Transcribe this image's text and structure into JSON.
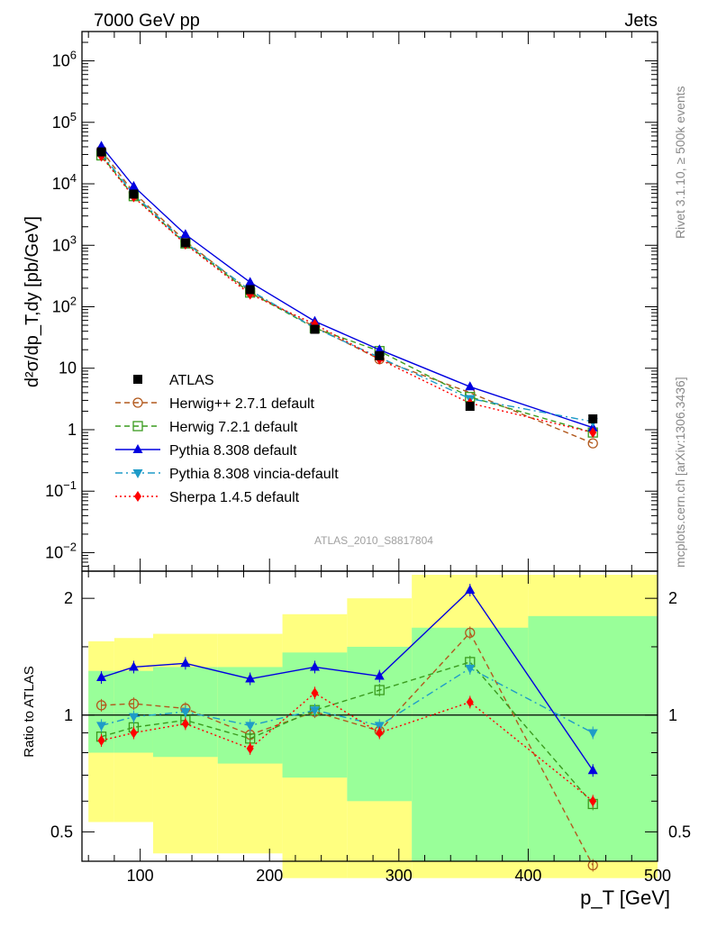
{
  "header": {
    "left": "7000 GeV pp",
    "right": "Jets",
    "side_rivet": "Rivet 3.1.10, ≥ 500k events",
    "side_mcplots": "mcplots.cern.ch [arXiv:1306.3436]",
    "analysis_id": "ATLAS_2010_S8817804"
  },
  "chart_data": [
    {
      "id": "main",
      "type": "line",
      "ylabel": "d²σ/dp_T,dy [pb/GeV]",
      "yscale": "log",
      "ylim": [
        0.005,
        3000000
      ],
      "xlim": [
        55,
        500
      ],
      "ytick_labels": [
        "10^-2",
        "10^-1",
        "1",
        "10",
        "10^2",
        "10^3",
        "10^4",
        "10^5",
        "10^6"
      ],
      "x": [
        70,
        95,
        135,
        185,
        235,
        285,
        355,
        450
      ],
      "data": {
        "name": "ATLAS",
        "values": [
          33000,
          6800,
          1100,
          190,
          43,
          16,
          2.4,
          1.5
        ]
      },
      "series": [
        {
          "name": "Herwig++ 2.7.1 default",
          "values": [
            35000,
            7200,
            1170,
            175,
            47,
            14,
            4.0,
            0.6
          ]
        },
        {
          "name": "Herwig 7.2.1 default",
          "values": [
            29000,
            6300,
            1070,
            170,
            45,
            19,
            3.4,
            0.9
          ]
        },
        {
          "name": "Pythia 8.308 default",
          "values": [
            41000,
            9100,
            1500,
            250,
            58,
            20,
            5.0,
            1.08
          ]
        },
        {
          "name": "Pythia 8.308 vincia-default",
          "values": [
            31000,
            6700,
            1110,
            185,
            45,
            15,
            3.2,
            1.35
          ]
        },
        {
          "name": "Sherpa 1.4.5 default",
          "values": [
            28000,
            6100,
            1040,
            160,
            52,
            14,
            2.7,
            0.9
          ]
        }
      ]
    },
    {
      "id": "ratio",
      "type": "line",
      "ylabel": "Ratio to ATLAS",
      "ylim": [
        0.42,
        2.35
      ],
      "xlabel": "p_T [GeV]",
      "xlim": [
        55,
        500
      ],
      "xticks": [
        100,
        200,
        300,
        400,
        500
      ],
      "yticks": [
        0.5,
        1,
        2
      ],
      "x": [
        70,
        95,
        135,
        185,
        235,
        285,
        355,
        450
      ],
      "bins": [
        [
          60,
          80
        ],
        [
          80,
          110
        ],
        [
          110,
          160
        ],
        [
          160,
          210
        ],
        [
          210,
          260
        ],
        [
          260,
          310
        ],
        [
          310,
          400
        ],
        [
          400,
          500
        ]
      ],
      "band_green": [
        [
          0.8,
          1.3
        ],
        [
          0.8,
          1.3
        ],
        [
          0.78,
          1.33
        ],
        [
          0.75,
          1.33
        ],
        [
          0.69,
          1.45
        ],
        [
          0.6,
          1.5
        ],
        [
          0.42,
          1.68
        ],
        [
          0.42,
          1.8
        ]
      ],
      "band_yellow": [
        [
          0.53,
          1.55
        ],
        [
          0.53,
          1.58
        ],
        [
          0.44,
          1.62
        ],
        [
          0.44,
          1.62
        ],
        [
          0.38,
          1.82
        ],
        [
          0.38,
          2.0
        ],
        [
          0.38,
          2.3
        ],
        [
          0.38,
          2.3
        ]
      ],
      "series": [
        {
          "name": "Herwig++ 2.7.1 default",
          "values": [
            1.06,
            1.07,
            1.04,
            0.89,
            1.02,
            0.91,
            1.63,
            0.41
          ]
        },
        {
          "name": "Herwig 7.2.1 default",
          "values": [
            0.88,
            0.93,
            0.97,
            0.87,
            1.03,
            1.16,
            1.37,
            0.59
          ]
        },
        {
          "name": "Pythia 8.308 default",
          "values": [
            1.25,
            1.33,
            1.36,
            1.24,
            1.33,
            1.26,
            2.1,
            0.72
          ]
        },
        {
          "name": "Pythia 8.308 vincia-default",
          "values": [
            0.94,
            0.99,
            1.02,
            0.94,
            1.03,
            0.94,
            1.32,
            0.9
          ]
        },
        {
          "name": "Sherpa 1.4.5 default",
          "values": [
            0.86,
            0.9,
            0.95,
            0.82,
            1.14,
            0.9,
            1.08,
            0.6
          ]
        }
      ]
    }
  ]
}
